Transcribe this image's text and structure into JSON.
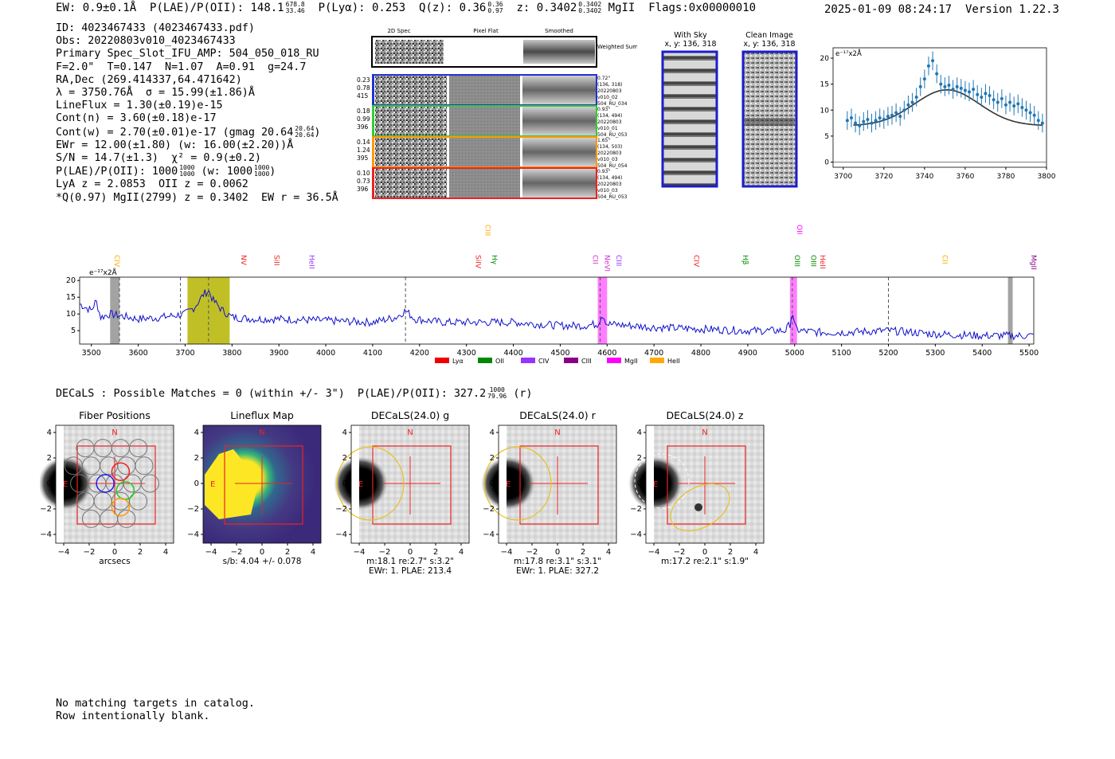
{
  "header": {
    "ew": "EW: 0.9±0.1Å",
    "plae_label": "P(LAE)/P(OII):",
    "plae_value": "148.1",
    "plae_hi": "678.8",
    "plae_lo": "33.46",
    "plya": "P(Lyα): 0.253",
    "qz_label": "Q(z): 0.36",
    "qz_hi": "0.36",
    "qz_lo": "0.97",
    "z_label": "z: 0.3402",
    "z_hi": "0.3402",
    "z_lo": "0.3402",
    "line": "MgII",
    "flags": "Flags:0x00000010",
    "datetime": "2025-01-09 08:24:17",
    "version": "Version 1.22.3"
  },
  "info": {
    "id": "ID: 4023467433 (4023467433.pdf)",
    "obs": "Obs: 20220803v010_4023467433",
    "primary": "Primary Spec_Slot_IFU_AMP: 504_050_018_RU",
    "fiber": "F=2.0\"  T=0.147  N=1.07  A=0.91  g=24.7",
    "radec": "RA,Dec (269.414337,64.471642)",
    "lambda": "λ = 3750.76Å  σ = 15.99(±1.86)Å",
    "lineflux": "LineFlux = 1.30(±0.19)e-15",
    "cont_n": "Cont(n) = 3.60(±0.18)e-17",
    "cont_w": "Cont(w) = 2.70(±0.01)e-17 (gmag 20.64",
    "cont_w_hi": "20.64",
    "cont_w_lo": "20.64",
    "ewr": "EWr = 12.00(±1.80) (w: 16.00(±2.20))Å",
    "sn": "S/N = 14.7(±1.3)  χ² = 0.9(±0.2)",
    "plae": "P(LAE)/P(OII): 1000",
    "plae_hi": "1000",
    "plae_lo": "1000",
    "plae_w": "(w: 1000",
    "plae_w_hi": "1000",
    "plae_w_lo": "1000",
    "lya_z": "LyA z = 2.0853  OII z = 0.0062",
    "q_line": "*Q(0.97) MgII(2799) z = 0.3402  EW r = 36.5Å"
  },
  "cutouts": {
    "col_2d": "2D Spec",
    "col_flat": "Pixel Flat",
    "col_smooth": "Smoothed",
    "weighted": "Weighted Sum",
    "rows": [
      {
        "vals": [
          "0.23",
          "0.78",
          "415"
        ],
        "meta": [
          "0.72\"",
          "(136, 318)",
          "20220803",
          "v010_02",
          "504_RU_034"
        ],
        "color": "#2233cc"
      },
      {
        "vals": [
          "0.18",
          "0.99",
          "396"
        ],
        "meta": [
          "0.93\"",
          "(134, 494)",
          "20220803",
          "v010_01",
          "504_RU_053"
        ],
        "color": "#33cc33"
      },
      {
        "vals": [
          "0.14",
          "1.24",
          "395"
        ],
        "meta": [
          "1.65\"",
          "(134, 503)",
          "20220803",
          "v010_03",
          "504_RU_054"
        ],
        "color": "#ff9900"
      },
      {
        "vals": [
          "0.10",
          "0.73",
          "396"
        ],
        "meta": [
          "0.93\"",
          "(134, 494)",
          "20220803",
          "v010_03",
          "504_RU_053"
        ],
        "color": "#ee2222"
      }
    ],
    "with_sky": "With Sky",
    "clean": "Clean Image",
    "xy": "x, y: 136, 318"
  },
  "decals_line": "DECaLS : Possible Matches = 0 (within +/- 3\")  P(LAE)/P(OII): 327.2",
  "decals_hi": "1000",
  "decals_lo": "79.96",
  "decals_band": "(r)",
  "chart_data": [
    {
      "type": "scatter",
      "name": "line-zoom",
      "ylabel": "e⁻¹⁷x2Å",
      "xlim": [
        3695,
        3800
      ],
      "ylim": [
        -1,
        22
      ],
      "xticks": [
        3700,
        3720,
        3740,
        3760,
        3780,
        3800
      ],
      "yticks": [
        0,
        5,
        10,
        15,
        20
      ],
      "x": [
        3702,
        3704,
        3706,
        3708,
        3710,
        3712,
        3714,
        3716,
        3718,
        3720,
        3722,
        3724,
        3726,
        3728,
        3730,
        3732,
        3734,
        3736,
        3738,
        3740,
        3742,
        3744,
        3746,
        3748,
        3750,
        3752,
        3754,
        3756,
        3758,
        3760,
        3762,
        3764,
        3766,
        3768,
        3770,
        3772,
        3774,
        3776,
        3778,
        3780,
        3782,
        3784,
        3786,
        3788,
        3790,
        3792,
        3794,
        3796,
        3798
      ],
      "y": [
        8.0,
        8.5,
        7.5,
        7.0,
        7.8,
        8.2,
        7.5,
        8.0,
        8.5,
        8.2,
        8.8,
        9.0,
        9.5,
        8.8,
        10.0,
        11.0,
        11.5,
        12.5,
        14.5,
        16.0,
        18.5,
        19.5,
        17.0,
        15.0,
        14.5,
        14.8,
        14.0,
        14.5,
        14.2,
        13.8,
        13.5,
        14.0,
        13.0,
        12.5,
        13.2,
        12.8,
        12.0,
        11.5,
        12.2,
        11.0,
        11.5,
        10.8,
        11.2,
        10.5,
        10.0,
        9.5,
        9.0,
        8.0,
        7.5
      ],
      "model_peak": 3751,
      "model_sigma": 16,
      "model_cont": 7.0,
      "model_amp": 6.9
    },
    {
      "type": "line",
      "name": "full-spectrum",
      "ylabel": "e⁻¹⁷x2Å",
      "xlim": [
        3475,
        5510
      ],
      "ylim": [
        1,
        21
      ],
      "xticks": [
        3500,
        3600,
        3700,
        3800,
        3900,
        4000,
        4100,
        4200,
        4300,
        4400,
        4500,
        4600,
        4700,
        4800,
        4900,
        5000,
        5100,
        5200,
        5300,
        5400,
        5500
      ],
      "yticks": [
        5,
        10,
        15,
        20
      ],
      "anchor_x": [
        3475,
        3500,
        3510,
        3520,
        3540,
        3560,
        3600,
        3650,
        3700,
        3720,
        3740,
        3750,
        3760,
        3780,
        3800,
        3850,
        3900,
        4000,
        4100,
        4150,
        4170,
        4190,
        4250,
        4300,
        4400,
        4500,
        4550,
        4580,
        4590,
        4600,
        4650,
        4700,
        4800,
        4900,
        4980,
        4990,
        4995,
        5000,
        5010,
        5050,
        5100,
        5200,
        5300,
        5400,
        5510
      ],
      "anchor_y": [
        13,
        11,
        14,
        9,
        10,
        9.5,
        8.5,
        9,
        10,
        12,
        16,
        17,
        14,
        11,
        9,
        8.5,
        8.5,
        8,
        7.5,
        9,
        11,
        8.5,
        7.5,
        7.5,
        7.5,
        6.5,
        6.5,
        7,
        10,
        7,
        6.5,
        6,
        5.5,
        5,
        5,
        7,
        11,
        6,
        5,
        4.5,
        4.5,
        5,
        4,
        3.5,
        3.5
      ],
      "vlines": [
        3560,
        3690,
        3750,
        4170,
        4585,
        4995,
        5200
      ],
      "bands": [
        {
          "x0": 3540,
          "x1": 3560,
          "color": "#999999",
          "hatch": true
        },
        {
          "x0": 3705,
          "x1": 3795,
          "color": "#b5b500"
        },
        {
          "x0": 4580,
          "x1": 4600,
          "color": "#ff66ff"
        },
        {
          "x0": 4990,
          "x1": 5005,
          "color": "#ff66ff"
        },
        {
          "x0": 5455,
          "x1": 5465,
          "color": "#999999",
          "hatch": true
        }
      ],
      "line_labels": [
        {
          "label": "CIV",
          "x": 3545,
          "color": "#ffaa00",
          "row": "mid"
        },
        {
          "label": "NV",
          "x": 3815,
          "color": "#ee2222",
          "row": "low"
        },
        {
          "label": "SiII",
          "x": 3885,
          "color": "#ee2222",
          "row": "low"
        },
        {
          "label": "HeII",
          "x": 3960,
          "color": "#9933ff",
          "row": "low"
        },
        {
          "label": "CIII",
          "x": 4335,
          "color": "#ffaa00",
          "row": "high"
        },
        {
          "label": "SiIV",
          "x": 4315,
          "color": "#ee2222",
          "row": "low"
        },
        {
          "label": "Hγ",
          "x": 4350,
          "color": "#008800",
          "row": "low"
        },
        {
          "label": "CII",
          "x": 4565,
          "color": "#cc33cc",
          "row": "low"
        },
        {
          "label": "NeVI",
          "x": 4590,
          "color": "#cc33cc",
          "row": "low"
        },
        {
          "label": "CIII",
          "x": 4615,
          "color": "#9933ff",
          "row": "low"
        },
        {
          "label": "CIV",
          "x": 4780,
          "color": "#ee2222",
          "row": "low"
        },
        {
          "label": "Hβ",
          "x": 4885,
          "color": "#008800",
          "row": "low"
        },
        {
          "label": "OII",
          "x": 5000,
          "color": "#ff00ff",
          "row": "high"
        },
        {
          "label": "OIII",
          "x": 4995,
          "color": "#008800",
          "row": "low"
        },
        {
          "label": "OIII",
          "x": 5030,
          "color": "#008800",
          "row": "low"
        },
        {
          "label": "HeII",
          "x": 5050,
          "color": "#ee2222",
          "row": "low"
        },
        {
          "label": "CII",
          "x": 5310,
          "color": "#ffaa00",
          "row": "low"
        },
        {
          "label": "MgII",
          "x": 5500,
          "color": "#880088",
          "row": "low"
        }
      ],
      "legend": [
        {
          "label": "Lyα",
          "color": "#ee0000"
        },
        {
          "label": "OII",
          "color": "#008800"
        },
        {
          "label": "CIV",
          "color": "#9933ff"
        },
        {
          "label": "CIII",
          "color": "#880088"
        },
        {
          "label": "MgII",
          "color": "#ff00ff"
        },
        {
          "label": "HeII",
          "color": "#ffaa00"
        }
      ]
    }
  ],
  "panels": [
    {
      "title": "Fiber Positions",
      "xlabel": "arcsecs",
      "caption": [],
      "compass_n": "N",
      "compass_e": "E"
    },
    {
      "title": "Lineflux Map",
      "xlabel": "s/b: 4.04 +/- 0.078",
      "caption": [],
      "compass_n": "N",
      "compass_e": "E"
    },
    {
      "title": "DECaLS(24.0) g",
      "xlabel": "m:18.1  re:2.7\"  s:3.2\"",
      "caption": [
        "EWr: 1. PLAE: 213.4"
      ],
      "compass_n": "N",
      "compass_e": "E"
    },
    {
      "title": "DECaLS(24.0) r",
      "xlabel": "m:17.8  re:3.1\"  s:3.1\"",
      "caption": [
        "EWr: 1. PLAE: 327.2"
      ],
      "compass_n": "N",
      "compass_e": "E"
    },
    {
      "title": "DECaLS(24.0) z",
      "xlabel": "m:17.2  re:2.1\"  s:1.9\"",
      "caption": [],
      "compass_n": "N",
      "compass_e": "E"
    }
  ],
  "panel_ticks": [
    "−4",
    "−2",
    "0",
    "2",
    "4"
  ],
  "footer": {
    "line1": "No matching targets in catalog.",
    "line2": "Row intentionally blank."
  }
}
